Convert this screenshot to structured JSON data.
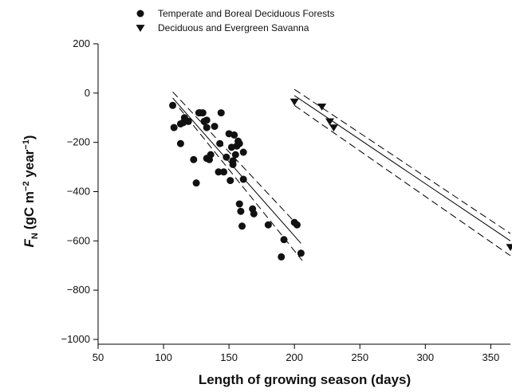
{
  "chart_data": {
    "type": "scatter",
    "x_label": "Length of growing season (days)",
    "y_label": {
      "symbol": "F",
      "subscript": "N",
      "unit": "(gC m",
      "exp1": "−2",
      "mid": " year",
      "exp2": "−1",
      "end": ")"
    },
    "xlim": [
      50,
      365
    ],
    "ylim": [
      -1000,
      200
    ],
    "xticks": [
      50,
      100,
      150,
      200,
      250,
      300,
      350
    ],
    "yticks": [
      {
        "value": -1000,
        "label": "−1000"
      },
      {
        "value": -800,
        "label": "−800"
      },
      {
        "value": -600,
        "label": "−600"
      },
      {
        "value": -400,
        "label": "−400"
      },
      {
        "value": -200,
        "label": "−200"
      },
      0,
      200
    ],
    "series": [
      {
        "name": "Temperate and Boreal Deciduous Forests",
        "marker": "circle",
        "color": "#111",
        "x": [
          107,
          108,
          113,
          113,
          115,
          116,
          117,
          119,
          123,
          125,
          127,
          128,
          130,
          131,
          133,
          133,
          133,
          135,
          136,
          139,
          142,
          143,
          144,
          146,
          148,
          150,
          151,
          152,
          153,
          153,
          154,
          155,
          156,
          157,
          158,
          158,
          159,
          160,
          161,
          161,
          168,
          169,
          180,
          190,
          192,
          200,
          202,
          205
        ],
        "values": [
          -50,
          -140,
          -125,
          -205,
          -120,
          -100,
          -110,
          -115,
          -270,
          -365,
          -80,
          -80,
          -80,
          -115,
          -140,
          -110,
          -265,
          -270,
          -250,
          -135,
          -320,
          -205,
          -80,
          -320,
          -260,
          -165,
          -355,
          -220,
          -275,
          -290,
          -170,
          -250,
          -215,
          -195,
          -205,
          -450,
          -480,
          -540,
          -240,
          -350,
          -470,
          -490,
          -535,
          -665,
          -595,
          -525,
          -535,
          -650
        ]
      },
      {
        "name": "Deciduous and Evergreen Savanna",
        "marker": "triangle-down",
        "color": "#111",
        "x": [
          200,
          221,
          227,
          230,
          365
        ],
        "values": [
          -35,
          -55,
          -115,
          -140,
          -625
        ]
      }
    ],
    "lines": [
      {
        "x": [
          107,
          205
        ],
        "values": [
          -20,
          -610
        ],
        "dash": false
      },
      {
        "x": [
          107,
          204
        ],
        "values": [
          5,
          -545
        ],
        "dash": true
      },
      {
        "x": [
          112,
          206
        ],
        "values": [
          -60,
          -680
        ],
        "dash": true
      },
      {
        "x": [
          200,
          365
        ],
        "values": [
          -10,
          -600
        ],
        "dash": false
      },
      {
        "x": [
          200,
          365
        ],
        "values": [
          15,
          -570
        ],
        "dash": true
      },
      {
        "x": [
          200,
          365
        ],
        "values": [
          -50,
          -660
        ],
        "dash": true
      }
    ]
  }
}
